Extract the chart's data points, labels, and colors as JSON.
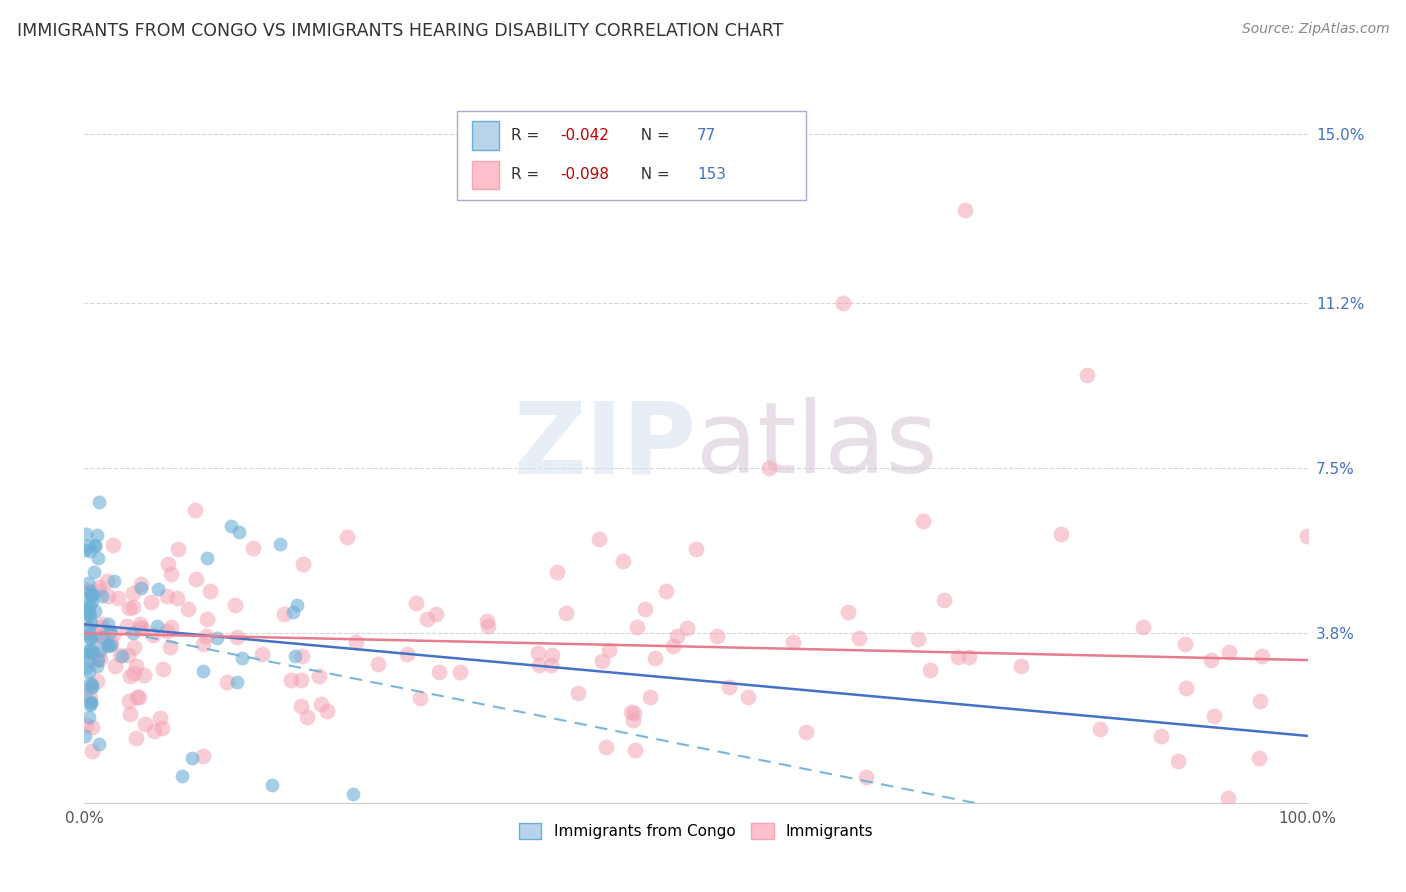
{
  "title": "IMMIGRANTS FROM CONGO VS IMMIGRANTS HEARING DISABILITY CORRELATION CHART",
  "source": "Source: ZipAtlas.com",
  "xlabel": "",
  "ylabel": "Hearing Disability",
  "legend_bottom": [
    "Immigrants from Congo",
    "Immigrants"
  ],
  "series1": {
    "label": "Immigrants from Congo",
    "R": -0.042,
    "N": 77,
    "scatter_color": "#6baed6",
    "line_color": "#4472c4",
    "line_style": "-"
  },
  "series2": {
    "label": "Immigrants",
    "R": -0.098,
    "N": 153,
    "scatter_color": "#f4a4b4",
    "line_color": "#e87c8c",
    "line_style": "-"
  },
  "xlim": [
    0,
    1.0
  ],
  "ylim": [
    0,
    0.16
  ],
  "yticks": [
    0.038,
    0.075,
    0.112,
    0.15
  ],
  "ytick_labels": [
    "3.8%",
    "7.5%",
    "11.2%",
    "15.0%"
  ],
  "xticks": [
    0.0,
    1.0
  ],
  "xtick_labels": [
    "0.0%",
    "100.0%"
  ],
  "grid_color": "#cccccc",
  "background_color": "#ffffff",
  "watermark": "ZIPatlas",
  "title_color": "#333333",
  "axis_label_color": "#4472c4",
  "legend_R_color": "#c00000",
  "legend_N_color": "#4472c4",
  "blue_line_intercept": 0.04,
  "blue_line_slope": -0.025,
  "pink_line_intercept": 0.038,
  "pink_line_slope": -0.006,
  "blue_dashed_intercept": 0.04,
  "blue_dashed_slope": -0.055
}
